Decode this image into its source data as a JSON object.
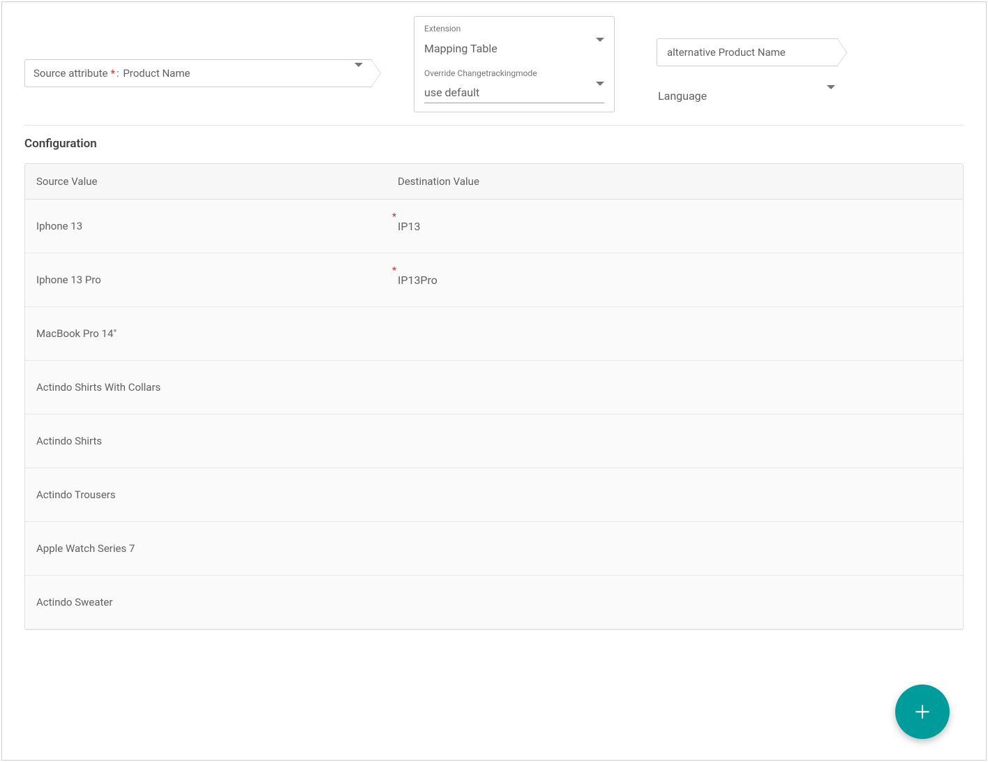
{
  "colors": {
    "accent": "#009b9b",
    "danger": "#d32f2f",
    "text": "#616161",
    "text_dark": "#424242",
    "border": "#cfcfcf",
    "row_bg": "#fafafa",
    "header_bg": "#f7f7f7"
  },
  "source_attribute": {
    "label": "Source attribute",
    "required_marker": "*",
    "separator": " : ",
    "value": "Product Name"
  },
  "extension": {
    "label": "Extension",
    "value": "Mapping Table",
    "override_label": "Override Changetrackingmode",
    "override_value": "use default"
  },
  "destination_attribute": {
    "value": "alternative Product Name"
  },
  "language": {
    "label": "Language"
  },
  "configuration": {
    "title": "Configuration",
    "columns": {
      "source": "Source Value",
      "destination": "Destination Value"
    },
    "rows": [
      {
        "source": "Iphone 13",
        "destination": "IP13",
        "dest_required": true
      },
      {
        "source": "Iphone 13 Pro",
        "destination": "IP13Pro",
        "dest_required": true
      },
      {
        "source": "MacBook Pro 14\"",
        "destination": ""
      },
      {
        "source": "Actindo Shirts With Collars",
        "destination": ""
      },
      {
        "source": "Actindo Shirts",
        "destination": ""
      },
      {
        "source": "Actindo Trousers",
        "destination": ""
      },
      {
        "source": "Apple Watch Series 7",
        "destination": ""
      },
      {
        "source": "Actindo Sweater",
        "destination": ""
      }
    ]
  },
  "fab": {
    "name": "add-row-button",
    "icon": "plus-icon"
  }
}
